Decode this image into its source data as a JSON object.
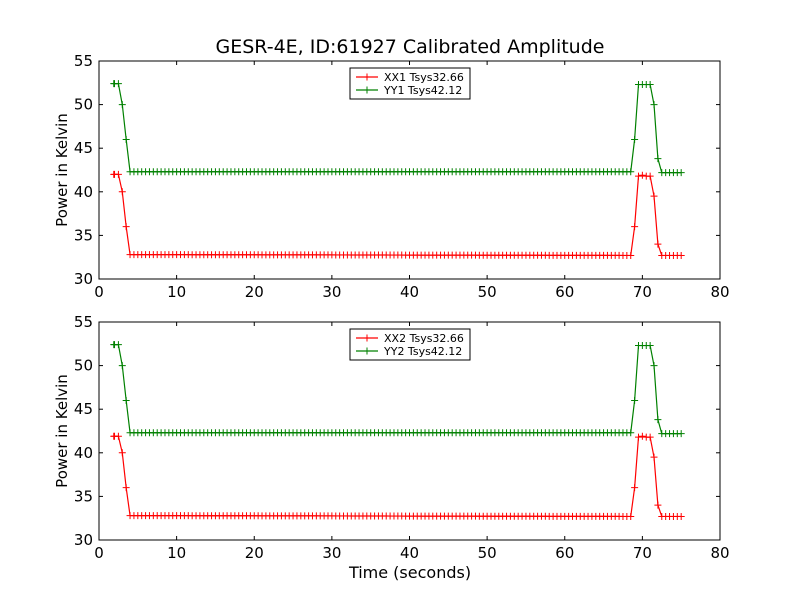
{
  "figure": {
    "title": "GESR-4E, ID:61927 Calibrated Amplitude",
    "xlabel": "Time (seconds)"
  },
  "chart_data": [
    {
      "type": "line",
      "ylabel": "Power in Kelvin",
      "xlim": [
        0,
        80
      ],
      "ylim": [
        30,
        55
      ],
      "x_ticks": [
        "0",
        "10",
        "20",
        "30",
        "40",
        "50",
        "60",
        "70",
        "80"
      ],
      "y_ticks": [
        "30",
        "35",
        "40",
        "45",
        "50",
        "55"
      ],
      "grid": false,
      "legend": "top-center",
      "series": [
        {
          "name": "XX1 Tsys32.66",
          "color": "#ff0000",
          "x": [
            2,
            2.5,
            3,
            3.5,
            4,
            68.5,
            69,
            69.5,
            70,
            70.5,
            71,
            71.5,
            72,
            72.5,
            75
          ],
          "y": [
            42,
            42,
            40,
            36,
            32.8,
            32.7,
            36,
            41.8,
            41.9,
            41.8,
            41.8,
            39.5,
            34,
            32.7,
            32.7
          ]
        },
        {
          "name": "YY1 Tsys42.12",
          "color": "#008000",
          "x": [
            2,
            2.5,
            3,
            3.5,
            4,
            68.5,
            69,
            69.5,
            70,
            70.5,
            71,
            71.5,
            72,
            72.5,
            75
          ],
          "y": [
            52.4,
            52.4,
            50,
            46,
            42.3,
            42.3,
            46,
            52.3,
            52.3,
            52.3,
            52.3,
            50,
            43.8,
            42.2,
            42.2
          ]
        }
      ]
    },
    {
      "type": "line",
      "ylabel": "Power in Kelvin",
      "xlim": [
        0,
        80
      ],
      "ylim": [
        30,
        55
      ],
      "x_ticks": [
        "0",
        "10",
        "20",
        "30",
        "40",
        "50",
        "60",
        "70",
        "80"
      ],
      "y_ticks": [
        "30",
        "35",
        "40",
        "45",
        "50",
        "55"
      ],
      "grid": false,
      "legend": "top-center",
      "series": [
        {
          "name": "XX2 Tsys32.66",
          "color": "#ff0000",
          "x": [
            2,
            2.5,
            3,
            3.5,
            4,
            68.5,
            69,
            69.5,
            70,
            70.5,
            71,
            71.5,
            72,
            72.5,
            75
          ],
          "y": [
            41.9,
            41.9,
            40,
            36,
            32.8,
            32.7,
            36,
            41.8,
            41.9,
            41.8,
            41.8,
            39.5,
            34,
            32.7,
            32.7
          ]
        },
        {
          "name": "YY2 Tsys42.12",
          "color": "#008000",
          "x": [
            2,
            2.5,
            3,
            3.5,
            4,
            68.5,
            69,
            69.5,
            70,
            70.5,
            71,
            71.5,
            72,
            72.5,
            75
          ],
          "y": [
            52.4,
            52.4,
            50,
            46,
            42.3,
            42.3,
            46,
            52.3,
            52.3,
            52.3,
            52.3,
            50,
            43.8,
            42.2,
            42.2
          ]
        }
      ]
    }
  ]
}
